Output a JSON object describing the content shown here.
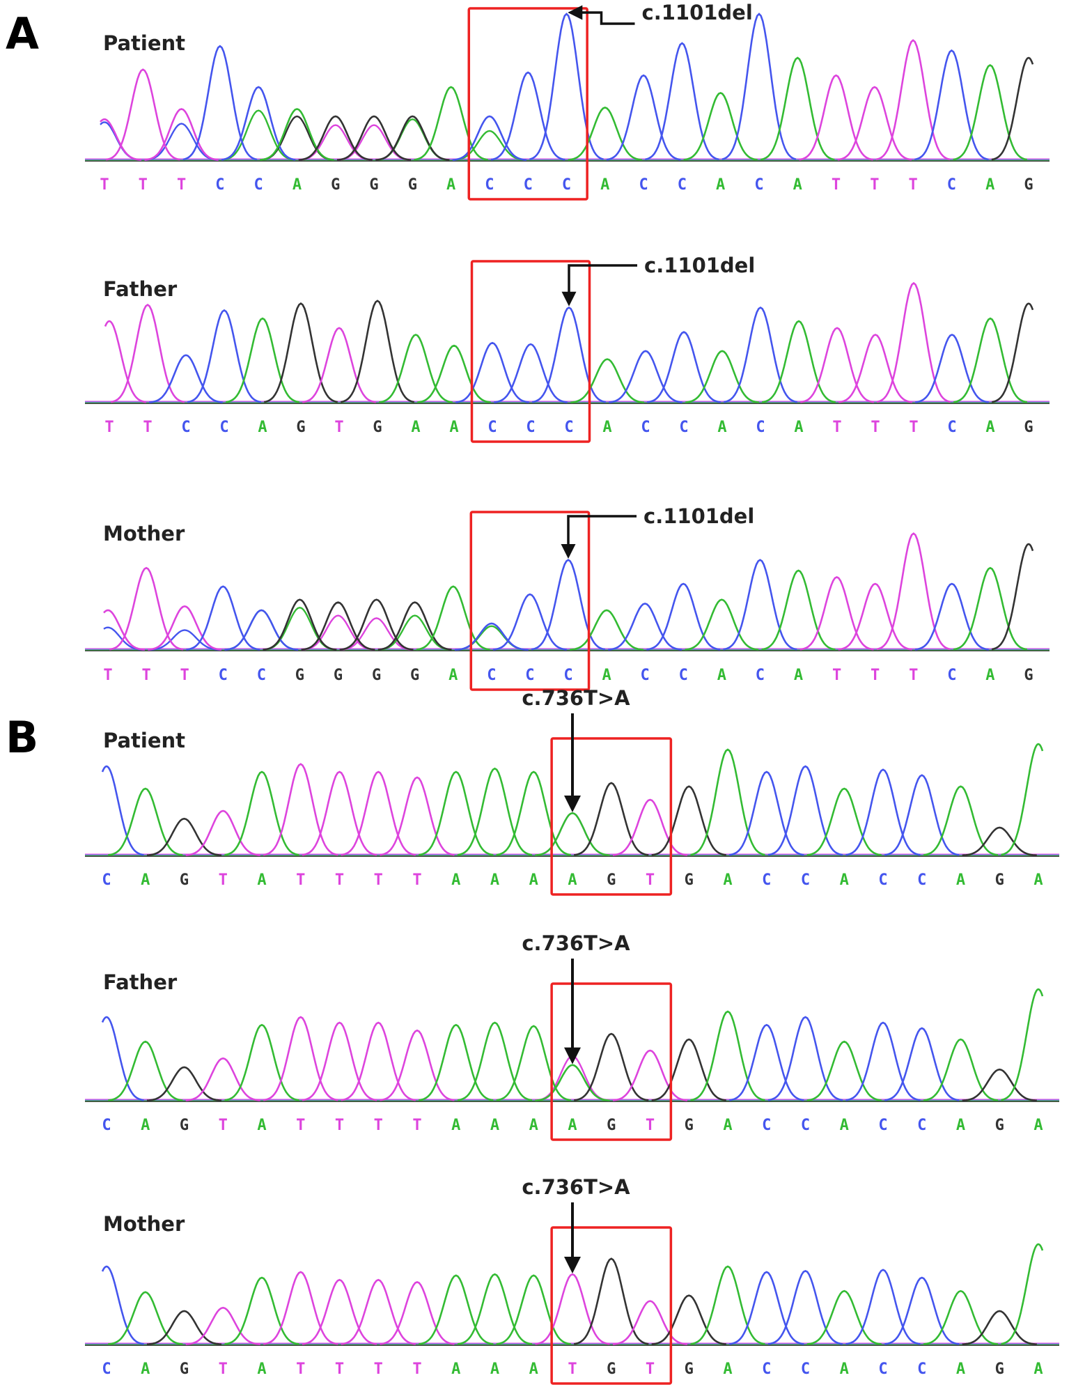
{
  "colors": {
    "A": "#33bb33",
    "C": "#4455ee",
    "G": "#333333",
    "T": "#dd44dd",
    "highlight": "#ee2222",
    "arrow": "#111111"
  },
  "sections": [
    {
      "letter": "A",
      "tracks": [
        {
          "label": "Patient",
          "sequence": [
            "T",
            "T",
            "T",
            "C",
            "C",
            "A",
            "G",
            "G",
            "G",
            "A",
            "C",
            "C",
            "C",
            "A",
            "C",
            "C",
            "A",
            "C",
            "A",
            "T",
            "T",
            "T",
            "C",
            "A",
            "G"
          ],
          "peaks": [
            {
              "b": "T",
              "h": 0.28
            },
            {
              "b": "T",
              "h": 0.62
            },
            {
              "b": "T",
              "h": 0.35
            },
            {
              "b": "C",
              "h": 0.78
            },
            {
              "b": "C",
              "h": 0.5
            },
            {
              "b": "A",
              "h": 0.35
            },
            {
              "b": "G",
              "h": 0.3
            },
            {
              "b": "G",
              "h": 0.3
            },
            {
              "b": "G",
              "h": 0.3
            },
            {
              "b": "A",
              "h": 0.5
            },
            {
              "b": "C",
              "h": 0.3
            },
            {
              "b": "C",
              "h": 0.6
            },
            {
              "b": "C",
              "h": 1.0
            },
            {
              "b": "A",
              "h": 0.36
            },
            {
              "b": "C",
              "h": 0.58
            },
            {
              "b": "C",
              "h": 0.8
            },
            {
              "b": "A",
              "h": 0.46
            },
            {
              "b": "C",
              "h": 1.0
            },
            {
              "b": "A",
              "h": 0.7
            },
            {
              "b": "T",
              "h": 0.58
            },
            {
              "b": "T",
              "h": 0.5
            },
            {
              "b": "T",
              "h": 0.82
            },
            {
              "b": "C",
              "h": 0.75
            },
            {
              "b": "A",
              "h": 0.65
            },
            {
              "b": "G",
              "h": 0.7
            }
          ],
          "secondary": [
            {
              "pos": 0,
              "b": "C",
              "h": 0.26
            },
            {
              "pos": 2,
              "b": "C",
              "h": 0.25
            },
            {
              "pos": 4,
              "b": "A",
              "h": 0.34
            },
            {
              "pos": 5,
              "b": "G",
              "h": 0.3
            },
            {
              "pos": 6,
              "b": "T",
              "h": 0.24
            },
            {
              "pos": 7,
              "b": "T",
              "h": 0.24
            },
            {
              "pos": 8,
              "b": "A",
              "h": 0.28
            },
            {
              "pos": 10,
              "b": "A",
              "h": 0.2
            }
          ],
          "box": {
            "from": 10,
            "to": 12
          },
          "variant": "c.1101del",
          "variant_pos": 12
        },
        {
          "label": "Father",
          "sequence": [
            "T",
            "T",
            "C",
            "C",
            "A",
            "G",
            "T",
            "G",
            "A",
            "A",
            "C",
            "C",
            "C",
            "A",
            "C",
            "C",
            "A",
            "C",
            "A",
            "T",
            "T",
            "T",
            "C",
            "A",
            "G"
          ],
          "peaks": [
            {
              "b": "T",
              "h": 0.6
            },
            {
              "b": "T",
              "h": 0.72
            },
            {
              "b": "C",
              "h": 0.35
            },
            {
              "b": "C",
              "h": 0.68
            },
            {
              "b": "A",
              "h": 0.62
            },
            {
              "b": "G",
              "h": 0.73
            },
            {
              "b": "T",
              "h": 0.55
            },
            {
              "b": "G",
              "h": 0.75
            },
            {
              "b": "A",
              "h": 0.5
            },
            {
              "b": "A",
              "h": 0.42
            },
            {
              "b": "C",
              "h": 0.44
            },
            {
              "b": "C",
              "h": 0.43
            },
            {
              "b": "C",
              "h": 0.7
            },
            {
              "b": "A",
              "h": 0.32
            },
            {
              "b": "C",
              "h": 0.38
            },
            {
              "b": "C",
              "h": 0.52
            },
            {
              "b": "A",
              "h": 0.38
            },
            {
              "b": "C",
              "h": 0.7
            },
            {
              "b": "A",
              "h": 0.6
            },
            {
              "b": "T",
              "h": 0.55
            },
            {
              "b": "T",
              "h": 0.5
            },
            {
              "b": "T",
              "h": 0.88
            },
            {
              "b": "C",
              "h": 0.5
            },
            {
              "b": "A",
              "h": 0.62
            },
            {
              "b": "G",
              "h": 0.73
            }
          ],
          "secondary": [],
          "box": {
            "from": 10,
            "to": 12
          },
          "variant": "c.1101del",
          "variant_pos": 12
        },
        {
          "label": "Mother",
          "sequence": [
            "T",
            "T",
            "T",
            "C",
            "C",
            "G",
            "G",
            "G",
            "G",
            "A",
            "C",
            "C",
            "C",
            "A",
            "C",
            "C",
            "A",
            "C",
            "A",
            "T",
            "T",
            "T",
            "C",
            "A",
            "G"
          ],
          "peaks": [
            {
              "b": "T",
              "h": 0.3
            },
            {
              "b": "T",
              "h": 0.62
            },
            {
              "b": "T",
              "h": 0.33
            },
            {
              "b": "C",
              "h": 0.48
            },
            {
              "b": "C",
              "h": 0.3
            },
            {
              "b": "G",
              "h": 0.38
            },
            {
              "b": "G",
              "h": 0.36
            },
            {
              "b": "G",
              "h": 0.38
            },
            {
              "b": "G",
              "h": 0.36
            },
            {
              "b": "A",
              "h": 0.48
            },
            {
              "b": "C",
              "h": 0.2
            },
            {
              "b": "C",
              "h": 0.42
            },
            {
              "b": "C",
              "h": 0.68
            },
            {
              "b": "A",
              "h": 0.3
            },
            {
              "b": "C",
              "h": 0.35
            },
            {
              "b": "C",
              "h": 0.5
            },
            {
              "b": "A",
              "h": 0.38
            },
            {
              "b": "C",
              "h": 0.68
            },
            {
              "b": "A",
              "h": 0.6
            },
            {
              "b": "T",
              "h": 0.55
            },
            {
              "b": "T",
              "h": 0.5
            },
            {
              "b": "T",
              "h": 0.88
            },
            {
              "b": "C",
              "h": 0.5
            },
            {
              "b": "A",
              "h": 0.62
            },
            {
              "b": "G",
              "h": 0.8
            }
          ],
          "secondary": [
            {
              "pos": 0,
              "b": "C",
              "h": 0.17
            },
            {
              "pos": 2,
              "b": "C",
              "h": 0.15
            },
            {
              "pos": 4,
              "b": "A",
              "h": 0.3
            },
            {
              "pos": 5,
              "b": "A",
              "h": 0.32
            },
            {
              "pos": 6,
              "b": "T",
              "h": 0.26
            },
            {
              "pos": 7,
              "b": "T",
              "h": 0.24
            },
            {
              "pos": 8,
              "b": "A",
              "h": 0.26
            },
            {
              "pos": 10,
              "b": "A",
              "h": 0.18
            }
          ],
          "box": {
            "from": 10,
            "to": 12
          },
          "variant": "c.1101del",
          "variant_pos": 12
        }
      ]
    },
    {
      "letter": "B",
      "tracks": [
        {
          "label": "Patient",
          "sequence": [
            "C",
            "A",
            "G",
            "T",
            "A",
            "T",
            "T",
            "T",
            "T",
            "A",
            "A",
            "A",
            "A",
            "G",
            "T",
            "G",
            "A",
            "C",
            "C",
            "A",
            "C",
            "C",
            "A",
            "G",
            "A"
          ],
          "peaks": [
            {
              "b": "C",
              "h": 0.8
            },
            {
              "b": "A",
              "h": 0.6
            },
            {
              "b": "G",
              "h": 0.33
            },
            {
              "b": "T",
              "h": 0.4
            },
            {
              "b": "A",
              "h": 0.75
            },
            {
              "b": "T",
              "h": 0.82
            },
            {
              "b": "T",
              "h": 0.75
            },
            {
              "b": "T",
              "h": 0.75
            },
            {
              "b": "T",
              "h": 0.7
            },
            {
              "b": "A",
              "h": 0.75
            },
            {
              "b": "A",
              "h": 0.78
            },
            {
              "b": "A",
              "h": 0.75
            },
            {
              "b": "A",
              "h": 0.38
            },
            {
              "b": "G",
              "h": 0.65
            },
            {
              "b": "T",
              "h": 0.5
            },
            {
              "b": "G",
              "h": 0.62
            },
            {
              "b": "A",
              "h": 0.95
            },
            {
              "b": "C",
              "h": 0.75
            },
            {
              "b": "C",
              "h": 0.8
            },
            {
              "b": "A",
              "h": 0.6
            },
            {
              "b": "C",
              "h": 0.77
            },
            {
              "b": "C",
              "h": 0.72
            },
            {
              "b": "A",
              "h": 0.62
            },
            {
              "b": "G",
              "h": 0.25
            },
            {
              "b": "A",
              "h": 1.0
            }
          ],
          "secondary": [
            {
              "pos": 12,
              "b": "T",
              "h": 0.38
            }
          ],
          "box": {
            "from": 12,
            "to": 14
          },
          "variant": "c.736T>A",
          "variant_pos": 12
        },
        {
          "label": "Father",
          "sequence": [
            "C",
            "A",
            "G",
            "T",
            "A",
            "T",
            "T",
            "T",
            "T",
            "A",
            "A",
            "A",
            "A",
            "G",
            "T",
            "G",
            "A",
            "C",
            "C",
            "A",
            "C",
            "C",
            "A",
            "G",
            "A"
          ],
          "peaks": [
            {
              "b": "C",
              "h": 0.75
            },
            {
              "b": "A",
              "h": 0.53
            },
            {
              "b": "G",
              "h": 0.3
            },
            {
              "b": "T",
              "h": 0.38
            },
            {
              "b": "A",
              "h": 0.68
            },
            {
              "b": "T",
              "h": 0.75
            },
            {
              "b": "T",
              "h": 0.7
            },
            {
              "b": "T",
              "h": 0.7
            },
            {
              "b": "T",
              "h": 0.63
            },
            {
              "b": "A",
              "h": 0.68
            },
            {
              "b": "A",
              "h": 0.7
            },
            {
              "b": "A",
              "h": 0.67
            },
            {
              "b": "A",
              "h": 0.32
            },
            {
              "b": "G",
              "h": 0.6
            },
            {
              "b": "T",
              "h": 0.45
            },
            {
              "b": "G",
              "h": 0.55
            },
            {
              "b": "A",
              "h": 0.8
            },
            {
              "b": "C",
              "h": 0.68
            },
            {
              "b": "C",
              "h": 0.75
            },
            {
              "b": "A",
              "h": 0.53
            },
            {
              "b": "C",
              "h": 0.7
            },
            {
              "b": "C",
              "h": 0.65
            },
            {
              "b": "A",
              "h": 0.55
            },
            {
              "b": "G",
              "h": 0.28
            },
            {
              "b": "A",
              "h": 1.0
            }
          ],
          "secondary": [
            {
              "pos": 12,
              "b": "T",
              "h": 0.4
            }
          ],
          "box": {
            "from": 12,
            "to": 14
          },
          "variant": "c.736T>A",
          "variant_pos": 12
        },
        {
          "label": "Mother",
          "sequence": [
            "C",
            "A",
            "G",
            "T",
            "A",
            "T",
            "T",
            "T",
            "T",
            "A",
            "A",
            "A",
            "T",
            "G",
            "T",
            "G",
            "A",
            "C",
            "C",
            "A",
            "C",
            "C",
            "A",
            "G",
            "A"
          ],
          "peaks": [
            {
              "b": "C",
              "h": 0.7
            },
            {
              "b": "A",
              "h": 0.47
            },
            {
              "b": "G",
              "h": 0.3
            },
            {
              "b": "T",
              "h": 0.33
            },
            {
              "b": "A",
              "h": 0.6
            },
            {
              "b": "T",
              "h": 0.65
            },
            {
              "b": "T",
              "h": 0.58
            },
            {
              "b": "T",
              "h": 0.58
            },
            {
              "b": "T",
              "h": 0.56
            },
            {
              "b": "A",
              "h": 0.62
            },
            {
              "b": "A",
              "h": 0.63
            },
            {
              "b": "A",
              "h": 0.62
            },
            {
              "b": "T",
              "h": 0.63
            },
            {
              "b": "G",
              "h": 0.77
            },
            {
              "b": "T",
              "h": 0.39
            },
            {
              "b": "G",
              "h": 0.44
            },
            {
              "b": "A",
              "h": 0.7
            },
            {
              "b": "C",
              "h": 0.65
            },
            {
              "b": "C",
              "h": 0.66
            },
            {
              "b": "A",
              "h": 0.48
            },
            {
              "b": "C",
              "h": 0.67
            },
            {
              "b": "C",
              "h": 0.6
            },
            {
              "b": "A",
              "h": 0.48
            },
            {
              "b": "G",
              "h": 0.3
            },
            {
              "b": "A",
              "h": 0.9
            }
          ],
          "secondary": [],
          "box": {
            "from": 12,
            "to": 14
          },
          "variant": "c.736T>A",
          "variant_pos": 12
        }
      ]
    }
  ]
}
